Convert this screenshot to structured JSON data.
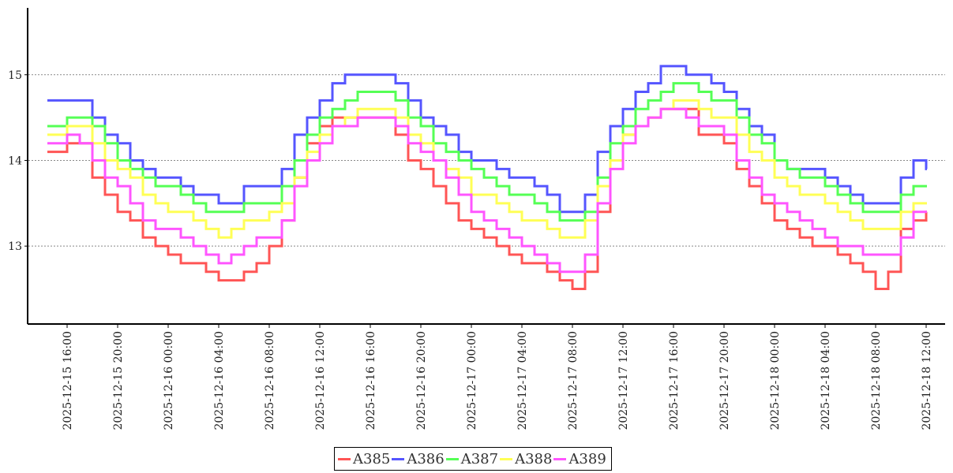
{
  "chart_data": {
    "type": "line",
    "step": true,
    "x_start": "2025-12-15 15:00",
    "x_interval_hours": 1,
    "ylim": [
      12.1,
      15.78
    ],
    "yticks": [
      13,
      14,
      15
    ],
    "grid": "horizontal dashed",
    "legend_placement": "bottom",
    "xtick_labels": [
      "2025-12-15 16:00",
      "2025-12-15 20:00",
      "2025-12-16 00:00",
      "2025-12-16 04:00",
      "2025-12-16 08:00",
      "2025-12-16 12:00",
      "2025-12-16 16:00",
      "2025-12-16 20:00",
      "2025-12-17 00:00",
      "2025-12-17 04:00",
      "2025-12-17 08:00",
      "2025-12-17 12:00",
      "2025-12-17 16:00",
      "2025-12-17 20:00",
      "2025-12-18 00:00",
      "2025-12-18 04:00",
      "2025-12-18 08:00",
      "2025-12-18 12:00"
    ],
    "series": [
      {
        "name": "A385",
        "color": "#ff5555",
        "values": [
          14.1,
          14.2,
          14.2,
          13.8,
          13.6,
          13.4,
          13.3,
          13.1,
          13.0,
          12.9,
          12.8,
          12.8,
          12.7,
          12.6,
          12.6,
          12.7,
          12.8,
          13.0,
          13.3,
          13.8,
          14.2,
          14.4,
          14.5,
          14.5,
          14.5,
          14.5,
          14.5,
          14.3,
          14.0,
          13.9,
          13.7,
          13.5,
          13.3,
          13.2,
          13.1,
          13.0,
          12.9,
          12.8,
          12.8,
          12.7,
          12.6,
          12.5,
          12.7,
          13.4,
          14.0,
          14.3,
          14.4,
          14.5,
          14.6,
          14.6,
          14.6,
          14.3,
          14.3,
          14.2,
          13.9,
          13.7,
          13.5,
          13.3,
          13.2,
          13.1,
          13.0,
          13.0,
          12.9,
          12.8,
          12.7,
          12.5,
          12.7,
          13.2,
          13.3,
          13.4
        ]
      },
      {
        "name": "A386",
        "color": "#5555ff",
        "values": [
          14.7,
          14.7,
          14.7,
          14.5,
          14.3,
          14.2,
          14.0,
          13.9,
          13.8,
          13.8,
          13.7,
          13.6,
          13.6,
          13.5,
          13.5,
          13.7,
          13.7,
          13.7,
          13.9,
          14.3,
          14.5,
          14.7,
          14.9,
          15.0,
          15.0,
          15.0,
          15.0,
          14.9,
          14.7,
          14.5,
          14.4,
          14.3,
          14.1,
          14.0,
          14.0,
          13.9,
          13.8,
          13.8,
          13.7,
          13.6,
          13.4,
          13.4,
          13.6,
          14.1,
          14.4,
          14.6,
          14.8,
          14.9,
          15.1,
          15.1,
          15.0,
          15.0,
          14.9,
          14.8,
          14.6,
          14.4,
          14.3,
          14.0,
          13.9,
          13.9,
          13.9,
          13.8,
          13.7,
          13.6,
          13.5,
          13.5,
          13.5,
          13.8,
          14.0,
          13.9
        ]
      },
      {
        "name": "A387",
        "color": "#55ff55",
        "values": [
          14.4,
          14.5,
          14.5,
          14.4,
          14.2,
          14.0,
          13.9,
          13.8,
          13.7,
          13.7,
          13.6,
          13.5,
          13.4,
          13.4,
          13.4,
          13.5,
          13.5,
          13.5,
          13.7,
          14.0,
          14.3,
          14.5,
          14.6,
          14.7,
          14.8,
          14.8,
          14.8,
          14.7,
          14.5,
          14.4,
          14.2,
          14.1,
          14.0,
          13.9,
          13.8,
          13.7,
          13.6,
          13.6,
          13.5,
          13.4,
          13.3,
          13.3,
          13.4,
          13.8,
          14.2,
          14.4,
          14.6,
          14.7,
          14.8,
          14.9,
          14.9,
          14.8,
          14.7,
          14.7,
          14.5,
          14.3,
          14.2,
          14.0,
          13.9,
          13.8,
          13.8,
          13.7,
          13.6,
          13.5,
          13.4,
          13.4,
          13.4,
          13.6,
          13.7,
          13.7
        ]
      },
      {
        "name": "A388",
        "color": "#ffff55",
        "values": [
          14.3,
          14.4,
          14.4,
          14.2,
          14.0,
          13.9,
          13.8,
          13.6,
          13.5,
          13.4,
          13.4,
          13.3,
          13.2,
          13.1,
          13.2,
          13.3,
          13.3,
          13.4,
          13.5,
          13.8,
          14.1,
          14.3,
          14.4,
          14.5,
          14.6,
          14.6,
          14.6,
          14.5,
          14.3,
          14.2,
          14.0,
          13.9,
          13.8,
          13.6,
          13.6,
          13.5,
          13.4,
          13.3,
          13.3,
          13.2,
          13.1,
          13.1,
          13.3,
          13.7,
          14.0,
          14.3,
          14.4,
          14.5,
          14.6,
          14.7,
          14.7,
          14.6,
          14.5,
          14.5,
          14.3,
          14.1,
          14.0,
          13.8,
          13.7,
          13.6,
          13.6,
          13.5,
          13.4,
          13.3,
          13.2,
          13.2,
          13.2,
          13.4,
          13.5,
          13.5
        ]
      },
      {
        "name": "A389",
        "color": "#ff55ff",
        "values": [
          14.2,
          14.3,
          14.2,
          14.0,
          13.8,
          13.7,
          13.5,
          13.3,
          13.2,
          13.2,
          13.1,
          13.0,
          12.9,
          12.8,
          12.9,
          13.0,
          13.1,
          13.1,
          13.3,
          13.7,
          14.0,
          14.2,
          14.4,
          14.4,
          14.5,
          14.5,
          14.5,
          14.4,
          14.2,
          14.1,
          14.0,
          13.8,
          13.6,
          13.4,
          13.3,
          13.2,
          13.1,
          13.0,
          12.9,
          12.8,
          12.7,
          12.7,
          12.9,
          13.5,
          13.9,
          14.2,
          14.4,
          14.5,
          14.6,
          14.6,
          14.5,
          14.4,
          14.4,
          14.3,
          14.0,
          13.8,
          13.6,
          13.5,
          13.4,
          13.3,
          13.2,
          13.1,
          13.0,
          13.0,
          12.9,
          12.9,
          12.9,
          13.1,
          13.4,
          13.4
        ]
      }
    ]
  }
}
